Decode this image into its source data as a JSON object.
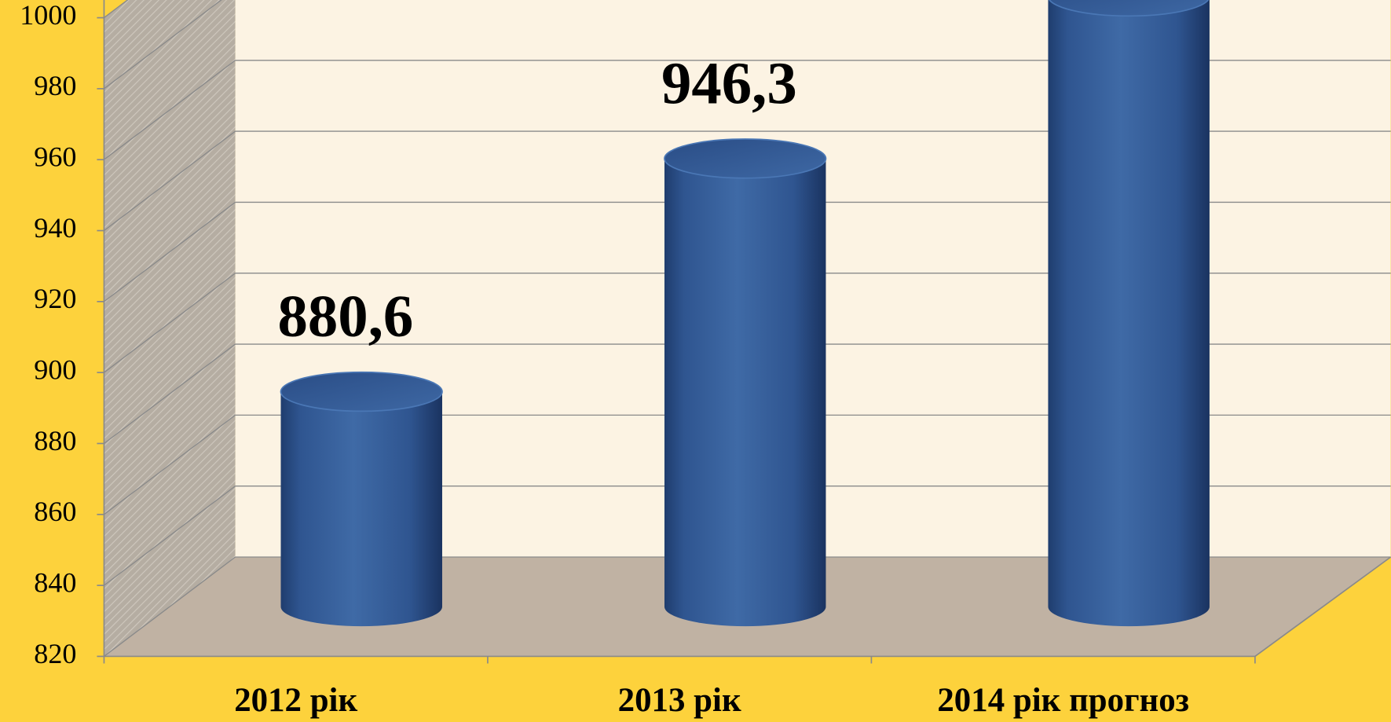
{
  "chart_data": {
    "type": "bar",
    "categories": [
      "2012 рік",
      "2013 рік",
      "2014 рік прогноз"
    ],
    "values": [
      880.6,
      946.3,
      992
    ],
    "value_labels": [
      "880,6",
      "946,3",
      null
    ],
    "color": "#3a62a0",
    "ylim": [
      820,
      1000
    ],
    "yticks": [
      820,
      840,
      860,
      880,
      900,
      920,
      940,
      960,
      980,
      1000
    ],
    "grid": true
  }
}
